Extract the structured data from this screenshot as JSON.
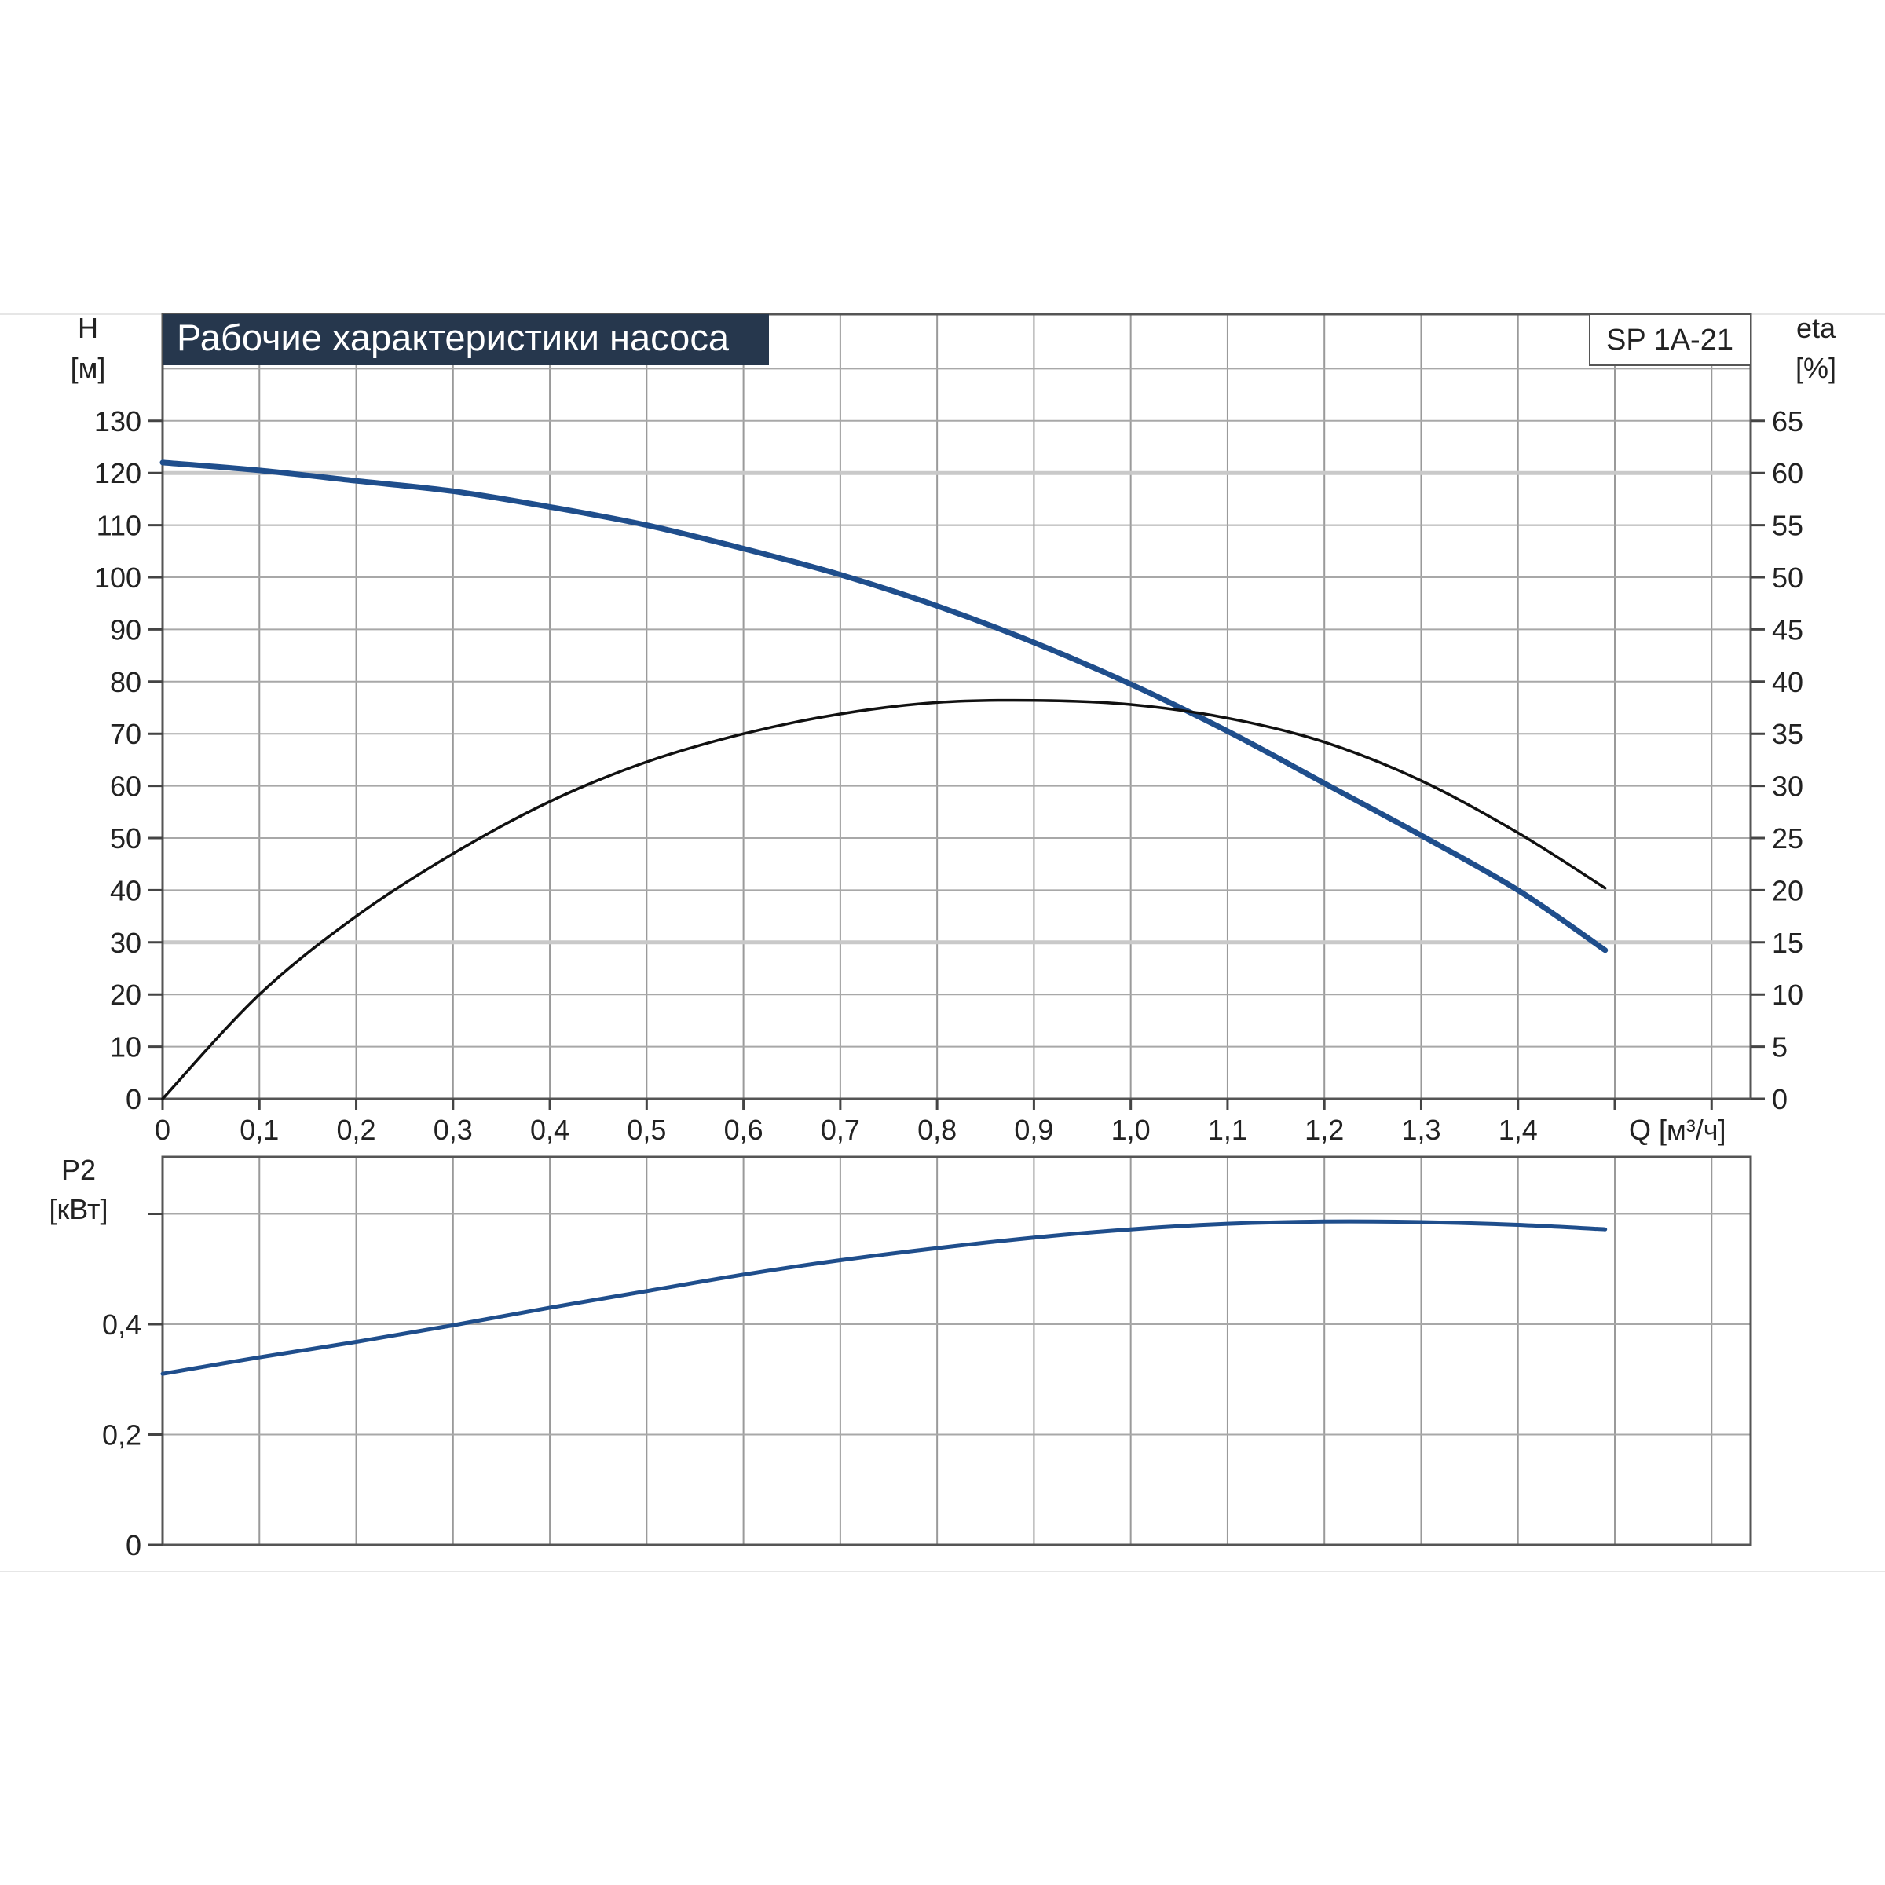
{
  "chart_data": [
    {
      "type": "line",
      "title": "Рабочие характеристики насоса",
      "model": "SP 1A-21",
      "xlabel": "Q [м³/ч]",
      "ylabel_left": [
        "H",
        "[м]"
      ],
      "ylabel_right": [
        "eta",
        "[%]"
      ],
      "xlim": [
        0,
        1.6
      ],
      "ylim_left": [
        0,
        150
      ],
      "ylim_right": [
        0,
        75
      ],
      "x_ticks": [
        "0",
        "0,1",
        "0,2",
        "0,3",
        "0,4",
        "0,5",
        "0,6",
        "0,7",
        "0,8",
        "0,9",
        "1,0",
        "1,1",
        "1,2",
        "1,3",
        "1,4"
      ],
      "y_ticks_left": [
        "0",
        "10",
        "20",
        "30",
        "40",
        "50",
        "60",
        "70",
        "80",
        "90",
        "100",
        "110",
        "120",
        "130"
      ],
      "y_ticks_right": [
        "0",
        "5",
        "10",
        "15",
        "20",
        "25",
        "30",
        "35",
        "40",
        "45",
        "50",
        "55",
        "60",
        "65"
      ],
      "grid": true,
      "series": [
        {
          "axis": "left",
          "color": "#1f4e8c",
          "x": [
            0,
            0.1,
            0.2,
            0.3,
            0.4,
            0.5,
            0.6,
            0.7,
            0.8,
            0.9,
            1.0,
            1.1,
            1.2,
            1.3,
            1.4,
            1.49
          ],
          "y": [
            122,
            120.5,
            118.5,
            116.5,
            113.5,
            110,
            105.5,
            100.5,
            94.5,
            87.5,
            79.5,
            70.5,
            60.5,
            50.5,
            40,
            28.5
          ]
        },
        {
          "axis": "right",
          "color": "#111111",
          "x": [
            0,
            0.1,
            0.2,
            0.3,
            0.4,
            0.5,
            0.6,
            0.7,
            0.8,
            0.9,
            1.0,
            1.1,
            1.2,
            1.3,
            1.4,
            1.49
          ],
          "y": [
            0,
            10,
            17.5,
            23.5,
            28.5,
            32.3,
            35,
            36.9,
            38,
            38.2,
            37.8,
            36.5,
            34.2,
            30.5,
            25.5,
            20.2
          ]
        }
      ]
    },
    {
      "type": "line",
      "title": "",
      "ylabel": [
        "P2",
        "[кВт]"
      ],
      "xlim": [
        0,
        1.6
      ],
      "ylim": [
        0,
        0.7
      ],
      "y_ticks": [
        "0",
        "0,2",
        "0,4"
      ],
      "grid": true,
      "series": [
        {
          "color": "#1f4e8c",
          "x": [
            0,
            0.1,
            0.2,
            0.3,
            0.4,
            0.5,
            0.6,
            0.7,
            0.8,
            0.9,
            1.0,
            1.1,
            1.2,
            1.3,
            1.4,
            1.49
          ],
          "y": [
            0.31,
            0.34,
            0.368,
            0.398,
            0.43,
            0.46,
            0.49,
            0.516,
            0.538,
            0.557,
            0.572,
            0.582,
            0.586,
            0.585,
            0.58,
            0.572
          ]
        }
      ]
    }
  ]
}
